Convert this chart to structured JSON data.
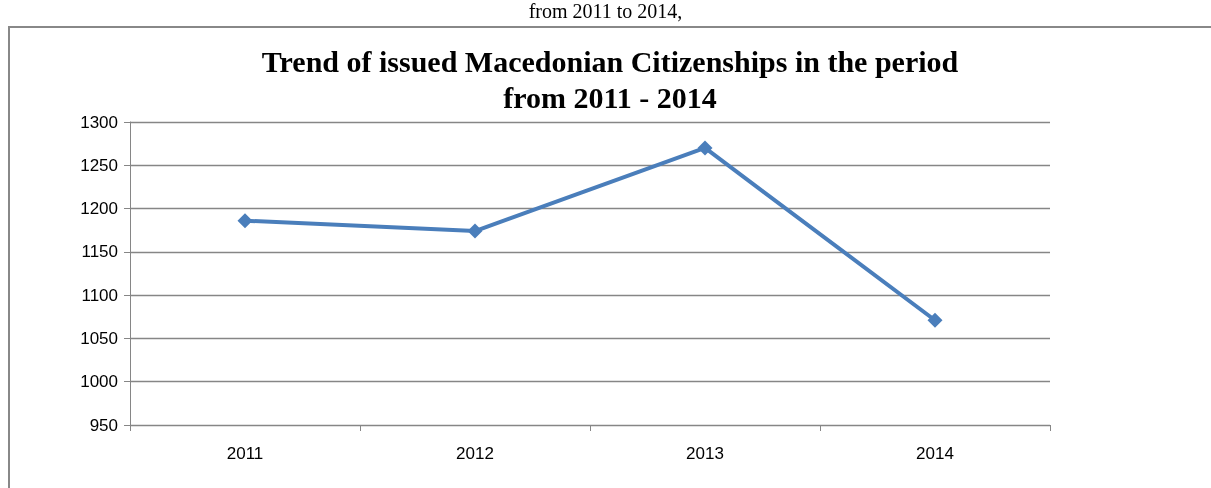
{
  "chart_data": {
    "type": "line",
    "title": "Trend of issued Macedonian Citizenships in the period\nfrom 2011 - 2014",
    "annotations": [
      "from 2011 to 2014,"
    ],
    "categories": [
      "2011",
      "2012",
      "2013",
      "2014"
    ],
    "series": [
      {
        "color": "#4a7ebb",
        "values": [
          1186,
          1174,
          1270,
          1071
        ]
      }
    ],
    "ylim": [
      950,
      1300
    ],
    "yticks": [
      950,
      1000,
      1050,
      1100,
      1150,
      1200,
      1250,
      1300
    ],
    "grid": "y",
    "marker": "diamond",
    "line_style": "solid"
  }
}
